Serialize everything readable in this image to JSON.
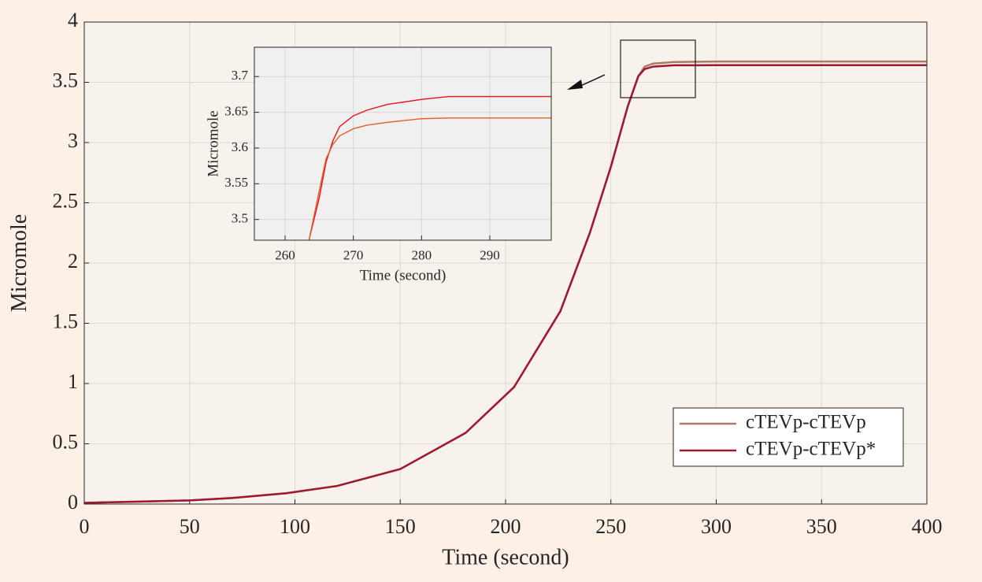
{
  "chart_data": [
    {
      "type": "line",
      "xlabel": "Time (second)",
      "ylabel": "Micromole",
      "x": [
        0,
        25,
        50,
        70,
        96,
        120,
        150,
        181,
        204,
        226,
        240,
        250,
        258,
        263,
        266,
        270,
        280,
        300,
        400
      ],
      "series": [
        {
          "name": "cTEVp-cTEVp",
          "color": "#a97a64",
          "values": [
            0.01,
            0.02,
            0.03,
            0.05,
            0.09,
            0.15,
            0.29,
            0.59,
            0.97,
            1.6,
            2.25,
            2.8,
            3.3,
            3.55,
            3.63,
            3.655,
            3.668,
            3.672,
            3.672
          ]
        },
        {
          "name": "cTEVp-cTEVp*",
          "color": "#a0182e",
          "values": [
            0.01,
            0.02,
            0.03,
            0.05,
            0.09,
            0.15,
            0.29,
            0.59,
            0.97,
            1.6,
            2.25,
            2.8,
            3.3,
            3.55,
            3.61,
            3.63,
            3.641,
            3.642,
            3.642
          ]
        }
      ],
      "xlim": [
        0,
        400
      ],
      "xticks": [
        0,
        50,
        100,
        150,
        200,
        250,
        300,
        350,
        400
      ],
      "ylim": [
        0,
        4
      ],
      "yticks": [
        0,
        0.5,
        1,
        1.5,
        2,
        2.5,
        3,
        3.5,
        4
      ],
      "grid": true,
      "legend": "lower right"
    },
    {
      "type": "line",
      "xlabel": "Time (second)",
      "ylabel": "Micromole",
      "x": [
        263.5,
        265,
        266,
        267,
        268,
        270,
        272,
        275,
        280,
        284,
        290,
        299
      ],
      "series": [
        {
          "color": "#e8101a",
          "values": [
            3.471,
            3.53,
            3.58,
            3.61,
            3.63,
            3.645,
            3.653,
            3.661,
            3.668,
            3.672,
            3.672,
            3.672
          ]
        },
        {
          "color": "#e0602a",
          "values": [
            3.471,
            3.54,
            3.585,
            3.605,
            3.617,
            3.627,
            3.632,
            3.636,
            3.641,
            3.642,
            3.642,
            3.642
          ]
        }
      ],
      "xlim": [
        255.5,
        299
      ],
      "xticks": [
        260,
        270,
        280,
        290
      ],
      "ylim": [
        3.471,
        3.741
      ],
      "yticks": [
        3.5,
        3.55,
        3.6,
        3.65,
        3.7
      ],
      "grid": true
    }
  ]
}
